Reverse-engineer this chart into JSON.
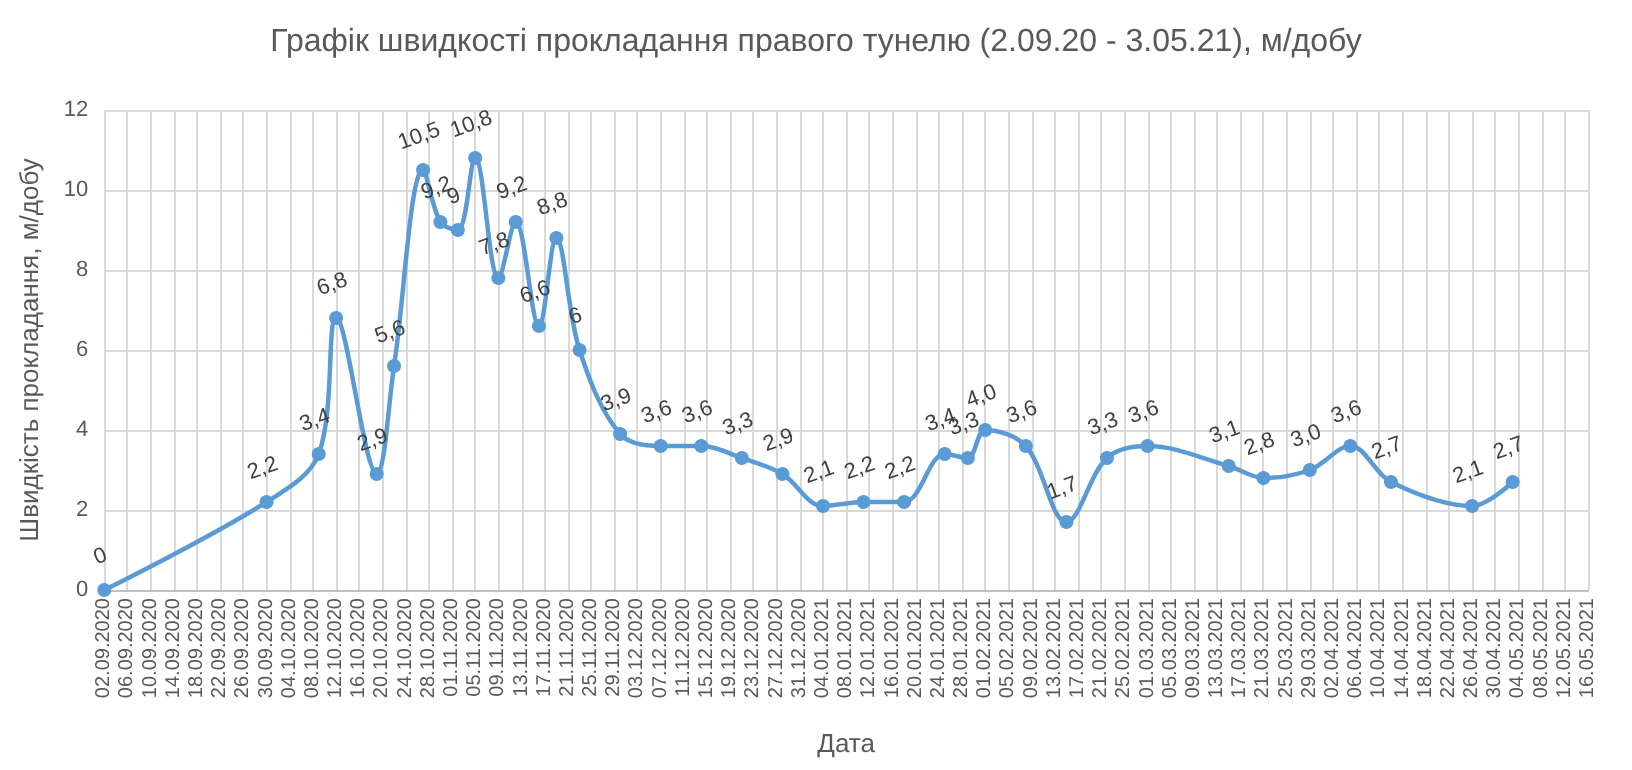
{
  "chart_data": {
    "type": "line",
    "title": "Графік швидкості прокладання правого тунелю (2.09.20 - 3.05.21), м/добу",
    "xlabel": "Дата",
    "ylabel": "Швидкість прокладання, м/добу",
    "x": [
      "2020-09-02",
      "2020-09-30",
      "2020-10-09",
      "2020-10-12",
      "2020-10-19",
      "2020-10-22",
      "2020-10-27",
      "2020-10-30",
      "2020-11-02",
      "2020-11-05",
      "2020-11-09",
      "2020-11-12",
      "2020-11-16",
      "2020-11-19",
      "2020-11-23",
      "2020-11-30",
      "2020-12-07",
      "2020-12-14",
      "2020-12-21",
      "2020-12-28",
      "2021-01-04",
      "2021-01-11",
      "2021-01-18",
      "2021-01-25",
      "2021-01-29",
      "2021-02-01",
      "2021-02-08",
      "2021-02-15",
      "2021-02-22",
      "2021-03-01",
      "2021-03-15",
      "2021-03-21",
      "2021-03-29",
      "2021-04-05",
      "2021-04-12",
      "2021-04-26",
      "2021-05-03"
    ],
    "series": [
      {
        "color": "#5b9bd5",
        "values": [
          0,
          2.2,
          3.4,
          6.8,
          2.9,
          5.6,
          10.5,
          9.2,
          9,
          10.8,
          7.8,
          9.2,
          6.6,
          8.8,
          6,
          3.9,
          3.6,
          3.6,
          3.3,
          2.9,
          2.1,
          2.2,
          2.2,
          3.4,
          3.3,
          4.0,
          3.6,
          1.7,
          3.3,
          3.6,
          3.1,
          2.8,
          3.0,
          3.6,
          2.7,
          2.1,
          2.7
        ],
        "value_labels": [
          "0",
          "2,2",
          "3,4",
          "6,8",
          "2,9",
          "5,6",
          "10,5",
          "9,2",
          "9",
          "10,8",
          "7,8",
          "9,2",
          "6,6",
          "8,8",
          "6",
          "3,9",
          "3,6",
          "3,6",
          "3,3",
          "2,9",
          "2,1",
          "2,2",
          "2,2",
          "3,4",
          "3,3",
          "4,0",
          "3,6",
          "1,7",
          "3,3",
          "3,6",
          "3,1",
          "2,8",
          "3,0",
          "3,6",
          "2,7",
          "2,1",
          "2,7"
        ]
      }
    ],
    "ylim": [
      0,
      12
    ],
    "yticks": [
      0,
      2,
      4,
      6,
      8,
      10,
      12
    ],
    "xlim": [
      "2020-09-02",
      "2021-05-16"
    ],
    "xticks": [
      {
        "value": "2020-09-02",
        "label": "02.09.2020"
      },
      {
        "value": "2020-09-06",
        "label": "06.09.2020"
      },
      {
        "value": "2020-09-10",
        "label": "10.09.2020"
      },
      {
        "value": "2020-09-14",
        "label": "14.09.2020"
      },
      {
        "value": "2020-09-18",
        "label": "18.09.2020"
      },
      {
        "value": "2020-09-22",
        "label": "22.09.2020"
      },
      {
        "value": "2020-09-26",
        "label": "26.09.2020"
      },
      {
        "value": "2020-09-30",
        "label": "30.09.2020"
      },
      {
        "value": "2020-10-04",
        "label": "04.10.2020"
      },
      {
        "value": "2020-10-08",
        "label": "08.10.2020"
      },
      {
        "value": "2020-10-12",
        "label": "12.10.2020"
      },
      {
        "value": "2020-10-16",
        "label": "16.10.2020"
      },
      {
        "value": "2020-10-20",
        "label": "20.10.2020"
      },
      {
        "value": "2020-10-24",
        "label": "24.10.2020"
      },
      {
        "value": "2020-10-28",
        "label": "28.10.2020"
      },
      {
        "value": "2020-11-01",
        "label": "01.11.2020"
      },
      {
        "value": "2020-11-05",
        "label": "05.11.2020"
      },
      {
        "value": "2020-11-09",
        "label": "09.11.2020"
      },
      {
        "value": "2020-11-13",
        "label": "13.11.2020"
      },
      {
        "value": "2020-11-17",
        "label": "17.11.2020"
      },
      {
        "value": "2020-11-21",
        "label": "21.11.2020"
      },
      {
        "value": "2020-11-25",
        "label": "25.11.2020"
      },
      {
        "value": "2020-11-29",
        "label": "29.11.2020"
      },
      {
        "value": "2020-12-03",
        "label": "03.12.2020"
      },
      {
        "value": "2020-12-07",
        "label": "07.12.2020"
      },
      {
        "value": "2020-12-11",
        "label": "11.12.2020"
      },
      {
        "value": "2020-12-15",
        "label": "15.12.2020"
      },
      {
        "value": "2020-12-19",
        "label": "19.12.2020"
      },
      {
        "value": "2020-12-23",
        "label": "23.12.2020"
      },
      {
        "value": "2020-12-27",
        "label": "27.12.2020"
      },
      {
        "value": "2020-12-31",
        "label": "31.12.2020"
      },
      {
        "value": "2021-01-04",
        "label": "04.01.2021"
      },
      {
        "value": "2021-01-08",
        "label": "08.01.2021"
      },
      {
        "value": "2021-01-12",
        "label": "12.01.2021"
      },
      {
        "value": "2021-01-16",
        "label": "16.01.2021"
      },
      {
        "value": "2021-01-20",
        "label": "20.01.2021"
      },
      {
        "value": "2021-01-24",
        "label": "24.01.2021"
      },
      {
        "value": "2021-01-28",
        "label": "28.01.2021"
      },
      {
        "value": "2021-02-01",
        "label": "01.02.2021"
      },
      {
        "value": "2021-02-05",
        "label": "05.02.2021"
      },
      {
        "value": "2021-02-09",
        "label": "09.02.2021"
      },
      {
        "value": "2021-02-13",
        "label": "13.02.2021"
      },
      {
        "value": "2021-02-17",
        "label": "17.02.2021"
      },
      {
        "value": "2021-02-21",
        "label": "21.02.2021"
      },
      {
        "value": "2021-02-25",
        "label": "25.02.2021"
      },
      {
        "value": "2021-03-01",
        "label": "01.03.2021"
      },
      {
        "value": "2021-03-05",
        "label": "05.03.2021"
      },
      {
        "value": "2021-03-09",
        "label": "09.03.2021"
      },
      {
        "value": "2021-03-13",
        "label": "13.03.2021"
      },
      {
        "value": "2021-03-17",
        "label": "17.03.2021"
      },
      {
        "value": "2021-03-21",
        "label": "21.03.2021"
      },
      {
        "value": "2021-03-25",
        "label": "25.03.2021"
      },
      {
        "value": "2021-03-29",
        "label": "29.03.2021"
      },
      {
        "value": "2021-04-02",
        "label": "02.04.2021"
      },
      {
        "value": "2021-04-06",
        "label": "06.04.2021"
      },
      {
        "value": "2021-04-10",
        "label": "10.04.2021"
      },
      {
        "value": "2021-04-14",
        "label": "14.04.2021"
      },
      {
        "value": "2021-04-18",
        "label": "18.04.2021"
      },
      {
        "value": "2021-04-22",
        "label": "22.04.2021"
      },
      {
        "value": "2021-04-26",
        "label": "26.04.2021"
      },
      {
        "value": "2021-04-30",
        "label": "30.04.2021"
      },
      {
        "value": "2021-05-04",
        "label": "04.05.2021"
      },
      {
        "value": "2021-05-08",
        "label": "08.05.2021"
      },
      {
        "value": "2021-05-12",
        "label": "12.05.2021"
      },
      {
        "value": "2021-05-16",
        "label": "16.05.2021"
      }
    ],
    "grid": true,
    "marker": "circle",
    "line_style": "solid"
  }
}
